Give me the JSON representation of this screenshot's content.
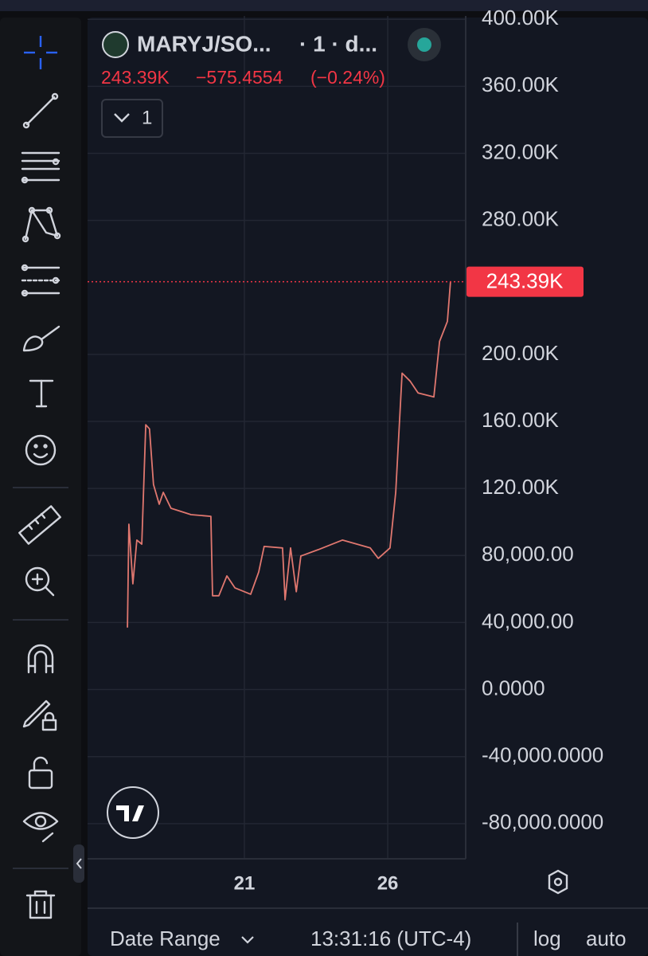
{
  "chart_data": {
    "type": "line",
    "title": "MARYJ/SO...",
    "interval": "· 1 · d...",
    "last_price": {
      "value": 243390,
      "label": "243.39K"
    },
    "change": {
      "value": -575.4554,
      "label": "−575.4554"
    },
    "change_percent": {
      "value": -0.24,
      "label": "(−0.24%)"
    },
    "indicator_count": 1,
    "x": [
      16.92,
      16.97,
      17.11,
      17.25,
      17.42,
      17.56,
      17.69,
      17.83,
      18.03,
      18.17,
      18.44,
      19.14,
      19.83,
      19.89,
      20.11,
      20.39,
      20.67,
      21.22,
      21.5,
      21.69,
      22.33,
      22.42,
      22.61,
      22.81,
      22.97,
      23.58,
      24.42,
      25.39,
      25.67,
      26.08,
      26.28,
      26.5,
      26.78,
      27.06,
      27.61,
      27.81,
      28.08,
      28.19
    ],
    "series": [
      {
        "name": "MARYJ/SO...",
        "color": "#e0776f",
        "values": [
          37000,
          98700,
          63100,
          89200,
          86800,
          158000,
          155600,
          122400,
          110600,
          117700,
          108200,
          104400,
          103400,
          56000,
          56000,
          67800,
          60700,
          56900,
          70200,
          85400,
          84500,
          53600,
          84500,
          58400,
          79700,
          83500,
          89200,
          84500,
          78300,
          84500,
          117700,
          188800,
          184100,
          177000,
          174600,
          207800,
          219700,
          243390
        ]
      }
    ],
    "xlim": [
      15.53,
      28.72
    ],
    "xticks": [
      21,
      26
    ],
    "ylim": [
      -101000,
      402000
    ],
    "yticks": [
      {
        "value": 400000,
        "label": "400.00K"
      },
      {
        "value": 360000,
        "label": "360.00K"
      },
      {
        "value": 320000,
        "label": "320.00K"
      },
      {
        "value": 280000,
        "label": "280.00K"
      },
      {
        "value": 200000,
        "label": "200.00K"
      },
      {
        "value": 160000,
        "label": "160.00K"
      },
      {
        "value": 120000,
        "label": "120.00K"
      },
      {
        "value": 80000,
        "label": "80,000.00"
      },
      {
        "value": 40000,
        "label": "40,000.00"
      },
      {
        "value": 0,
        "label": "0.0000"
      },
      {
        "value": -40000,
        "label": "-40,000.0000"
      },
      {
        "value": -80000,
        "label": "-80,000.0000"
      }
    ],
    "grid": true
  },
  "bottom_bar": {
    "date_range": "Date Range",
    "time": "13:31:16 (UTC-4)",
    "log": "log",
    "auto": "auto"
  }
}
